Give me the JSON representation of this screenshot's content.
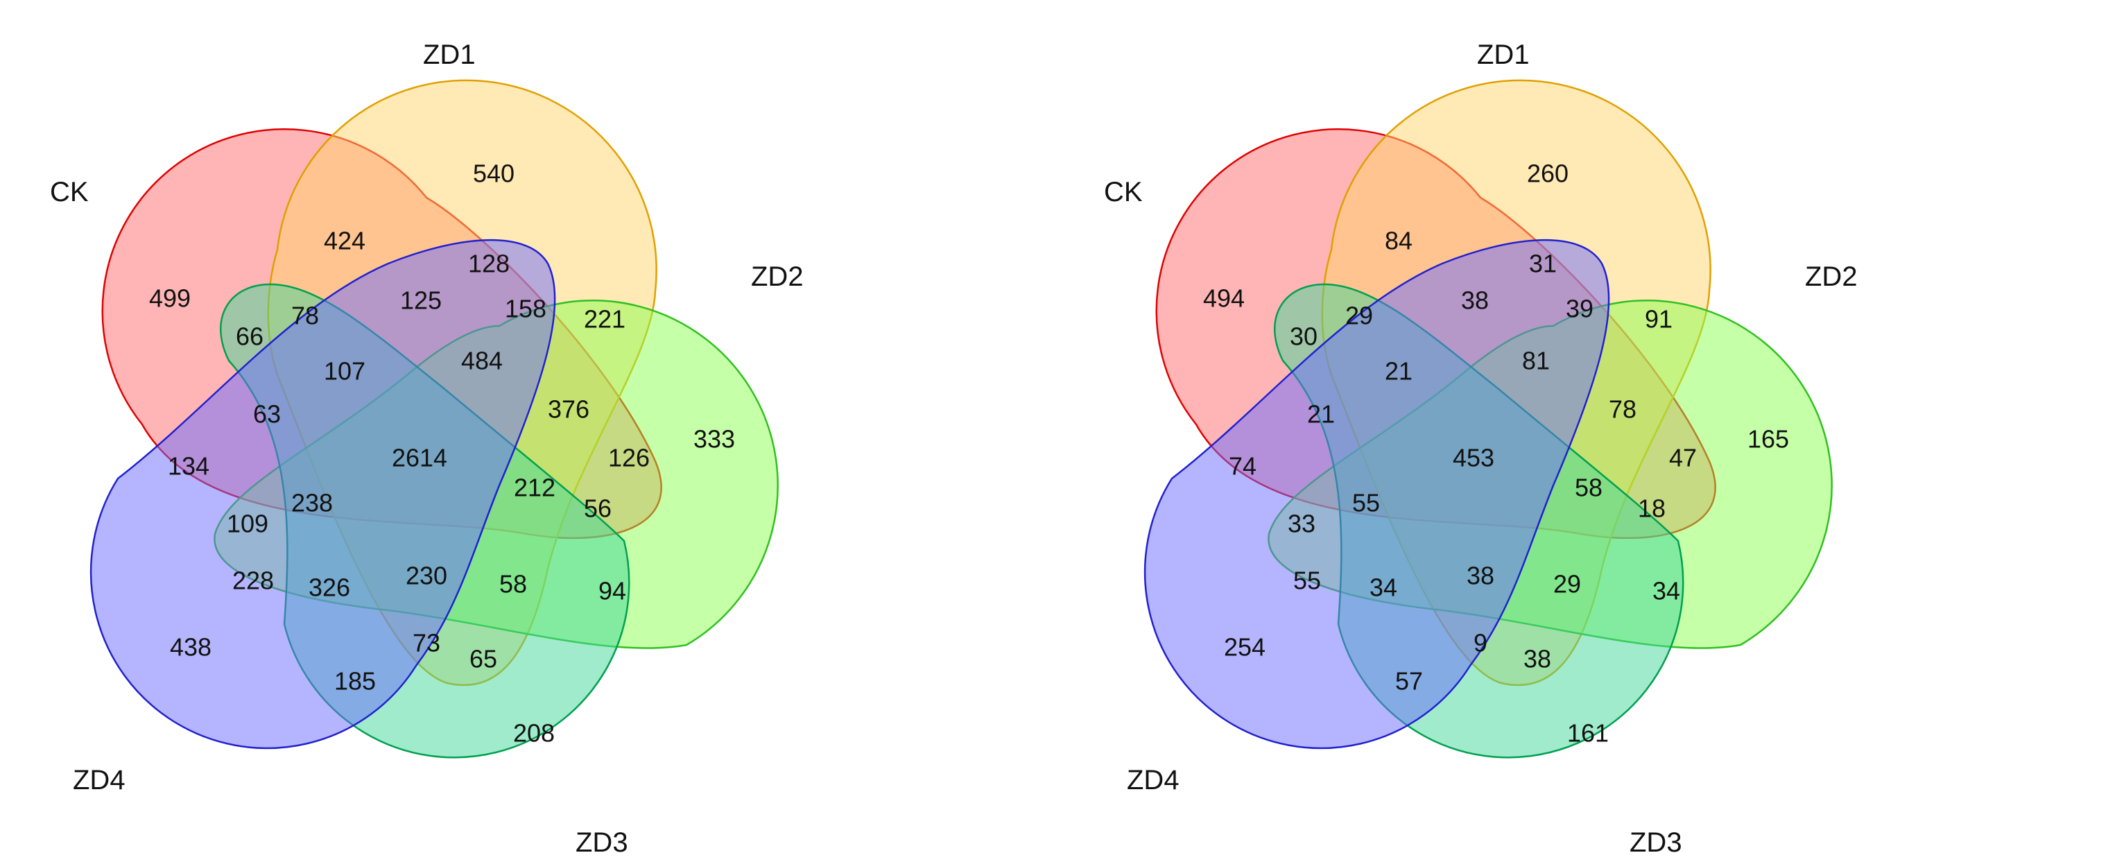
{
  "sets": [
    {
      "name": "CK",
      "fill": "#ff6b6b",
      "stroke": "#e00000"
    },
    {
      "name": "ZD1",
      "fill": "#ffd46b",
      "stroke": "#e0a000"
    },
    {
      "name": "ZD2",
      "fill": "#8cff50",
      "stroke": "#30c020"
    },
    {
      "name": "ZD3",
      "fill": "#40d898",
      "stroke": "#00a050"
    },
    {
      "name": "ZD4",
      "fill": "#6b6bff",
      "stroke": "#2020d0"
    }
  ],
  "diagrams": [
    {
      "counts": {
        "CK_only": "499",
        "ZD1_only": "540",
        "ZD2_only": "333",
        "ZD3_only": "208",
        "ZD4_only": "438",
        "CK_ZD1": "424",
        "CK_ZD4": "134",
        "ZD1_ZD2": "221",
        "ZD2_ZD3": "94",
        "ZD3_ZD4": "185",
        "r_128": "128",
        "r_125": "125",
        "r_158": "158",
        "r_66": "66",
        "r_78": "78",
        "r_484": "484",
        "r_107": "107",
        "r_376": "376",
        "r_63": "63",
        "r_126": "126",
        "all": "2614",
        "r_212": "212",
        "r_238": "238",
        "r_56": "56",
        "r_109": "109",
        "r_228": "228",
        "r_326": "326",
        "r_230": "230",
        "r_58": "58",
        "r_73": "73",
        "r_65": "65"
      }
    },
    {
      "counts": {
        "CK_only": "494",
        "ZD1_only": "260",
        "ZD2_only": "165",
        "ZD3_only": "161",
        "ZD4_only": "254",
        "CK_ZD1": "84",
        "CK_ZD4": "74",
        "ZD1_ZD2": "91",
        "ZD2_ZD3": "34",
        "ZD3_ZD4": "57",
        "r_128": "31",
        "r_125": "38",
        "r_158": "39",
        "r_66": "30",
        "r_78": "29",
        "r_484": "81",
        "r_107": "21",
        "r_376": "78",
        "r_63": "21",
        "r_126": "47",
        "all": "453",
        "r_212": "58",
        "r_238": "55",
        "r_56": "18",
        "r_109": "33",
        "r_228": "55",
        "r_326": "34",
        "r_230": "38",
        "r_58": "29",
        "r_73": "9",
        "r_65": "38"
      }
    }
  ]
}
